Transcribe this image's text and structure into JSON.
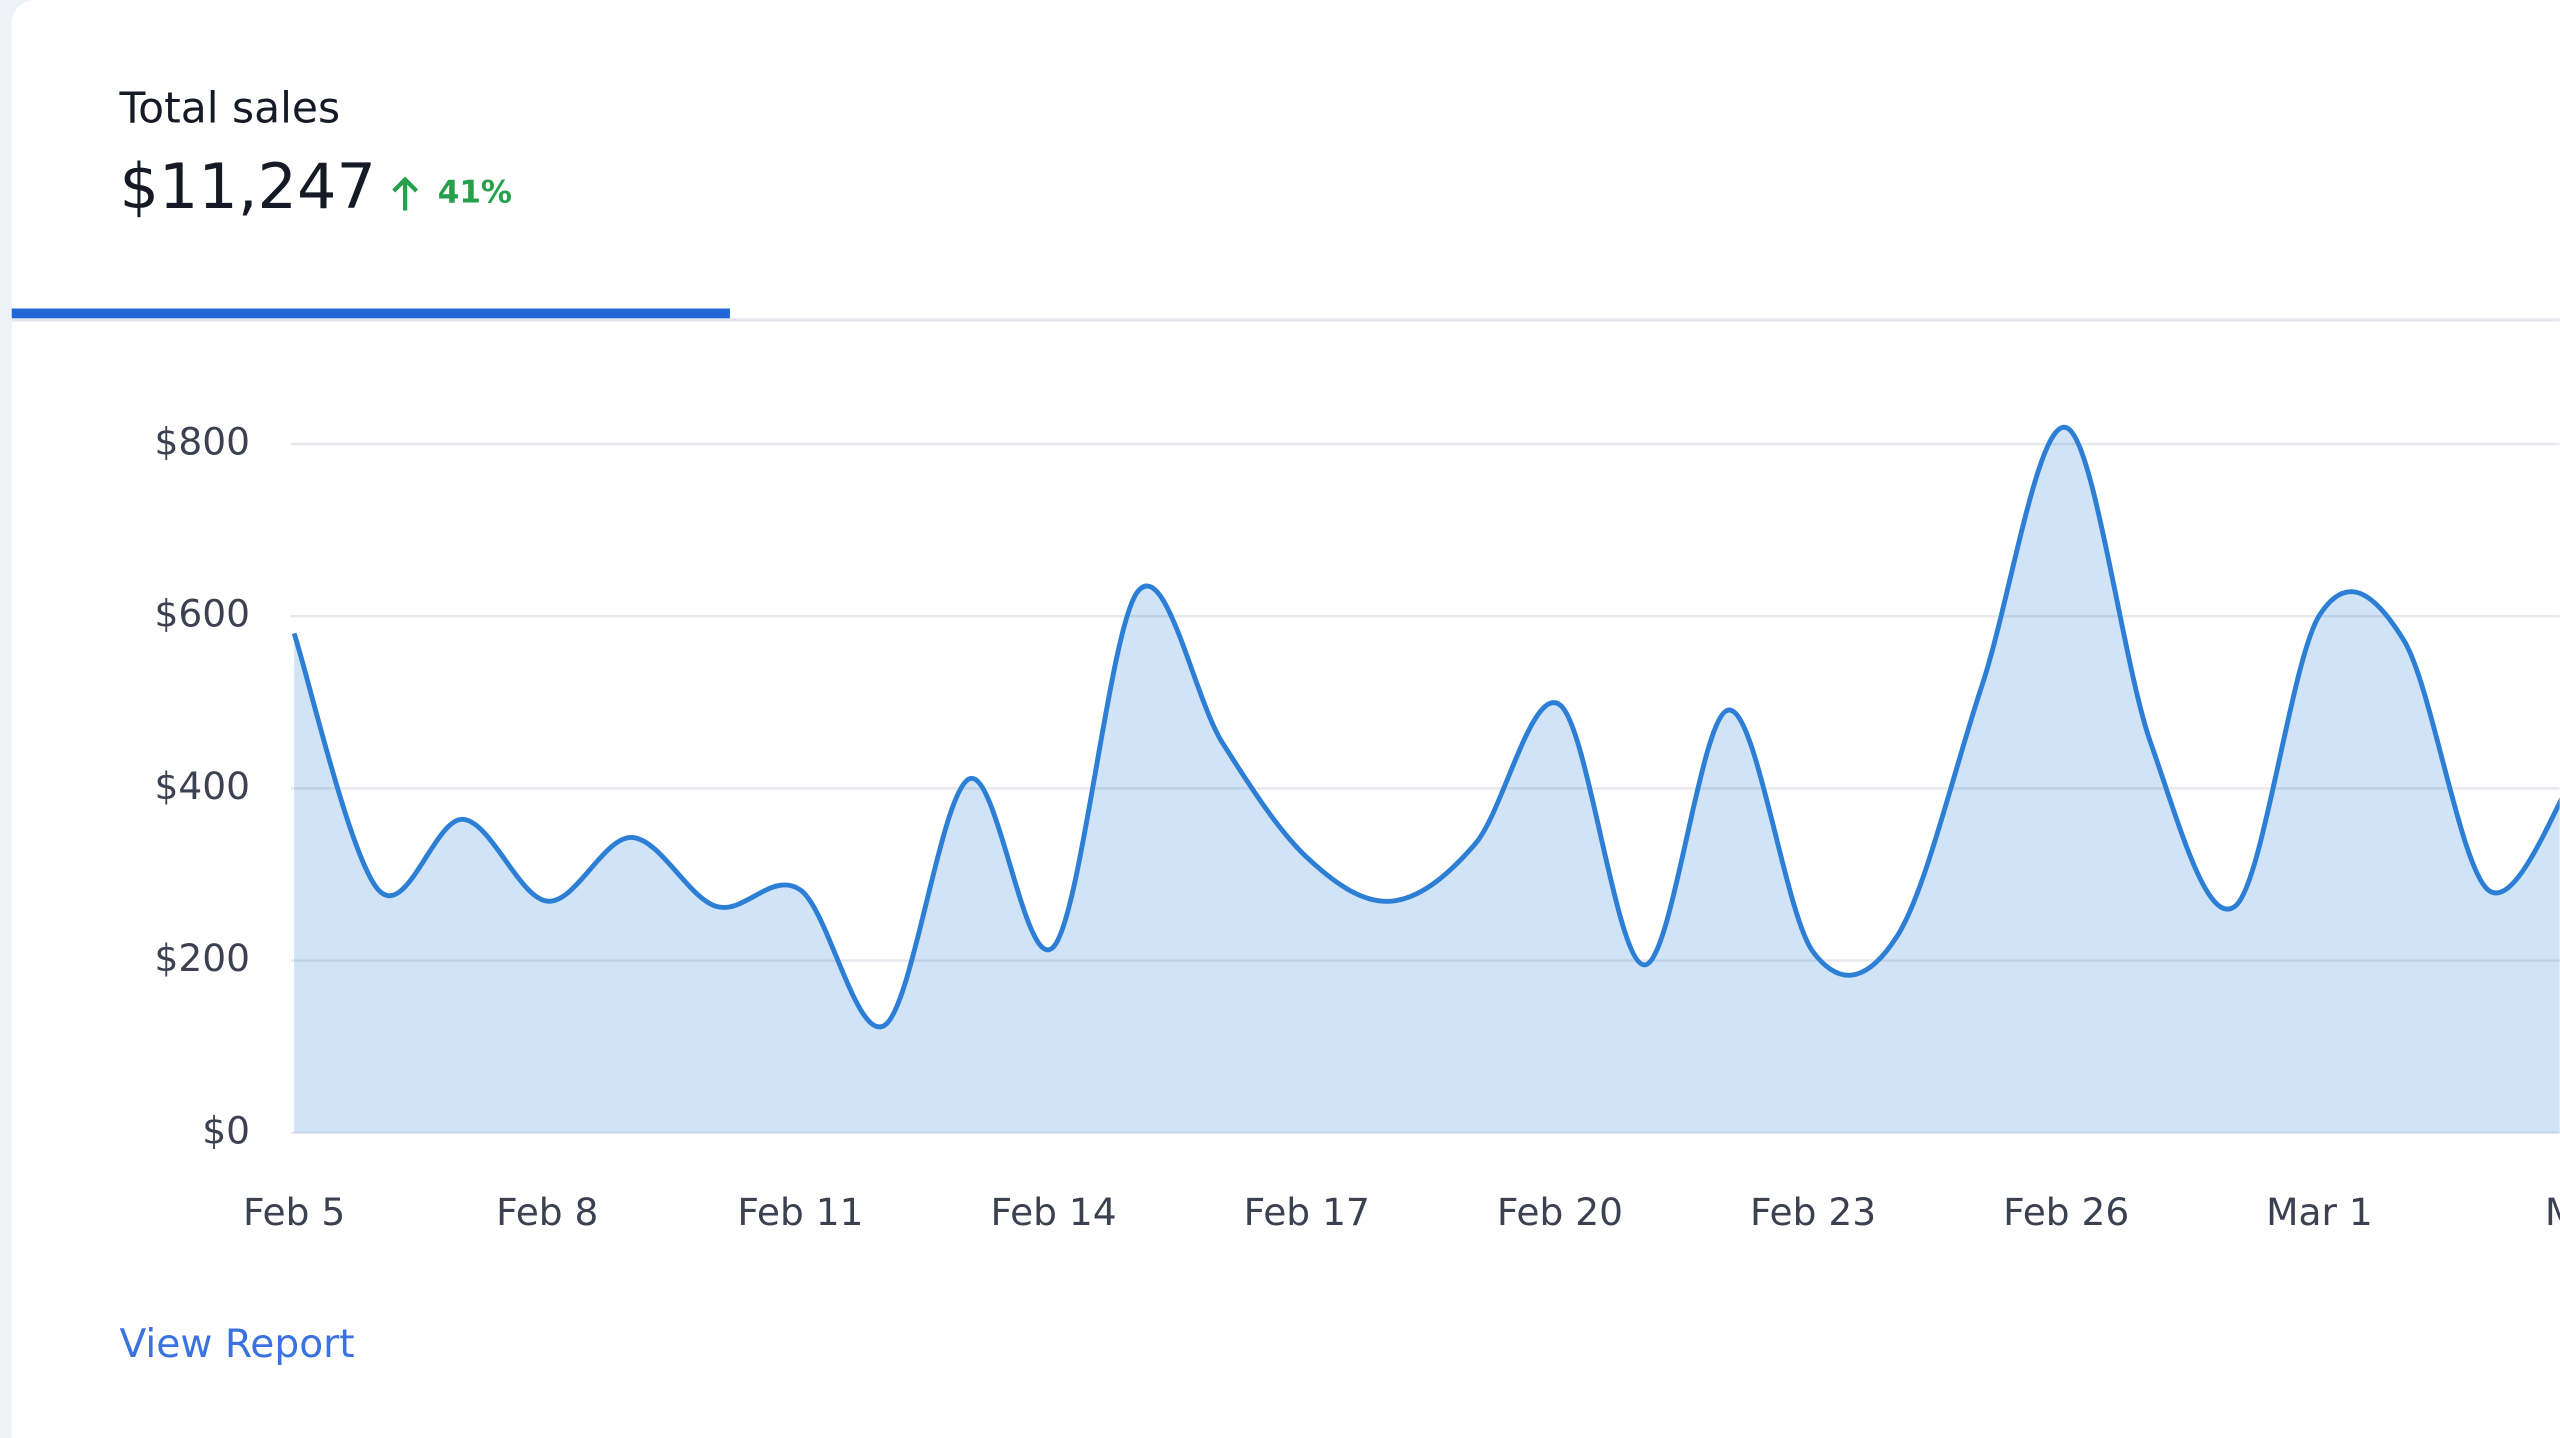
{
  "header": {
    "title": "Total sales",
    "value": "$11,247",
    "change": "41%"
  },
  "chart_data": {
    "type": "area",
    "categories": [
      "Feb 5",
      null,
      null,
      "Feb 8",
      null,
      null,
      "Feb 11",
      null,
      null,
      "Feb 14",
      null,
      null,
      "Feb 17",
      null,
      null,
      "Feb 20",
      null,
      null,
      "Feb 23",
      null,
      null,
      "Feb 26",
      null,
      null,
      "Mar 1",
      null,
      null,
      "Ma"
    ],
    "series": [
      {
        "color": "#2d7fd6",
        "values": [
          580,
          282,
          364,
          269,
          343,
          263,
          282,
          125,
          411,
          216,
          629,
          453,
          320,
          269,
          336,
          497,
          195,
          491,
          210,
          229,
          519,
          819,
          453,
          263,
          601,
          572,
          282,
          411
        ]
      }
    ],
    "ylim": [
      0,
      800
    ],
    "yticks": [
      {
        "value": 0,
        "label": "$0"
      },
      {
        "value": 200,
        "label": "$200"
      },
      {
        "value": 400,
        "label": "$400"
      },
      {
        "value": 600,
        "label": "$600"
      },
      {
        "value": 800,
        "label": "$800"
      }
    ],
    "grid": true
  },
  "link": "View Report"
}
